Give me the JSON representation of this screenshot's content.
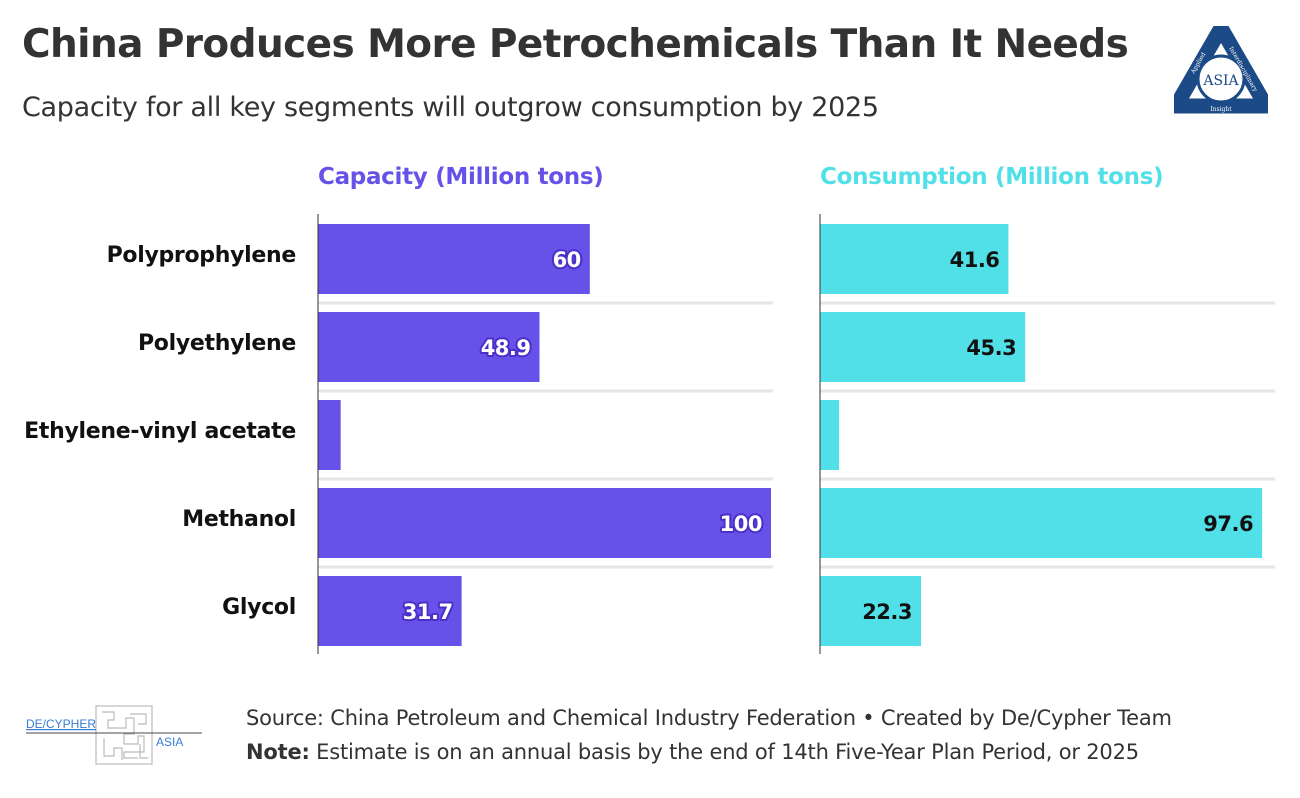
{
  "header": {
    "title": "China Produces More Petrochemicals Than It Needs",
    "subtitle": "Capacity for all key segments will outgrow consumption by 2025"
  },
  "logo": {
    "center_text": "ASIA",
    "ring_text_left": "Applied",
    "ring_text_right": "Interdisciplinary",
    "ring_text_bottom": "Insight",
    "color": "#1b4a86"
  },
  "chart_data": {
    "type": "bar",
    "orientation": "horizontal",
    "categories": [
      "Polyprophylene",
      "Polyethylene",
      "Ethylene-vinyl acetate",
      "Methanol",
      "Glycol"
    ],
    "panels": [
      {
        "name": "Capacity (Million tons)",
        "color": "#6652e8",
        "label_color": "#ffffff",
        "label_stroke": "#4a2fc9",
        "values": [
          60,
          48.9,
          5,
          100,
          31.7
        ],
        "value_labels": [
          "60",
          "48.9",
          "",
          "100",
          "31.7"
        ],
        "xlim": [
          0,
          100
        ]
      },
      {
        "name": "Consumption (Million tons)",
        "color": "#52e0e8",
        "label_color": "#111111",
        "label_stroke": "#52e0e8",
        "values": [
          41.6,
          45.3,
          4.2,
          97.6,
          22.3
        ],
        "value_labels": [
          "41.6",
          "45.3",
          "",
          "97.6",
          "22.3"
        ],
        "xlim": [
          0,
          100
        ]
      }
    ],
    "grid": true
  },
  "footer": {
    "logo_left_text": "DE/CYPHER",
    "logo_right_text": "ASIA",
    "source": "Source: China Petroleum and Chemical Industry Federation • Created by De/Cypher Team",
    "note_label": "Note:",
    "note_text": " Estimate is on an annual basis by the end of 14th Five-Year Plan Period, or 2025"
  }
}
